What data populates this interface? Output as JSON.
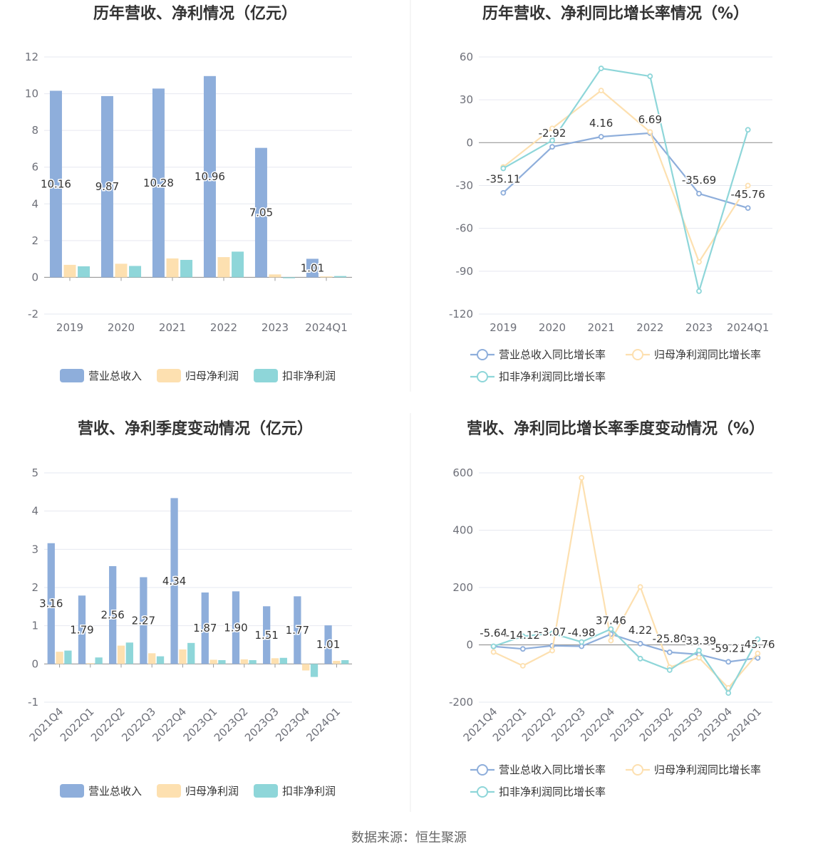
{
  "colors": {
    "revenue": "#8eaedb",
    "parent_profit": "#fde0b0",
    "deducted_profit": "#8ed6d9",
    "grid": "#e6e8f0",
    "axis": "#6e7079"
  },
  "source": "数据来源：恒生聚源",
  "chart_data": [
    {
      "type": "bar",
      "title": "历年营收、净利情况（亿元）",
      "categories": [
        "2019",
        "2020",
        "2021",
        "2022",
        "2023",
        "2024Q1"
      ],
      "ylim": [
        -2,
        12
      ],
      "yticks": [
        -2,
        0,
        2,
        4,
        6,
        8,
        10,
        12
      ],
      "series": [
        {
          "name": "营业总收入",
          "values": [
            10.16,
            9.87,
            10.28,
            10.96,
            7.05,
            1.01
          ]
        },
        {
          "name": "归母净利润",
          "values": [
            0.68,
            0.74,
            1.03,
            1.1,
            0.16,
            0.05
          ]
        },
        {
          "name": "扣非净利润",
          "values": [
            0.6,
            0.62,
            0.95,
            1.4,
            -0.05,
            0.07
          ]
        }
      ],
      "data_labels": [
        "10.16",
        "9.87",
        "10.28",
        "10.96",
        "7.05",
        "1.01"
      ],
      "legend": [
        "营业总收入",
        "归母净利润",
        "扣非净利润"
      ]
    },
    {
      "type": "line",
      "title": "历年营收、净利同比增长率情况（%）",
      "categories": [
        "2019",
        "2020",
        "2021",
        "2022",
        "2023",
        "2024Q1"
      ],
      "ylim": [
        -120,
        60
      ],
      "yticks": [
        -120,
        -90,
        -60,
        -30,
        0,
        30,
        60
      ],
      "series": [
        {
          "name": "营业总收入同比增长率",
          "values": [
            -35.11,
            -2.92,
            4.16,
            6.69,
            -35.69,
            -45.76
          ]
        },
        {
          "name": "归母净利润同比增长率",
          "values": [
            -17,
            10,
            36.5,
            7.5,
            -83.5,
            -30
          ]
        },
        {
          "name": "扣非净利润同比增长率",
          "values": [
            -18,
            1.5,
            52,
            46.5,
            -104,
            9
          ]
        }
      ],
      "data_labels": [
        "-35.11",
        "-2.92",
        "4.16",
        "6.69",
        "-35.69",
        "-45.76"
      ],
      "legend": [
        "营业总收入同比增长率",
        "归母净利润同比增长率",
        "扣非净利润同比增长率"
      ]
    },
    {
      "type": "bar",
      "title": "营收、净利季度变动情况（亿元）",
      "categories": [
        "2021Q4",
        "2022Q1",
        "2022Q2",
        "2022Q3",
        "2022Q4",
        "2023Q1",
        "2023Q2",
        "2023Q3",
        "2023Q4",
        "2024Q1"
      ],
      "ylim": [
        -1,
        5
      ],
      "yticks": [
        -1,
        0,
        1,
        2,
        3,
        4,
        5
      ],
      "series": [
        {
          "name": "营业总收入",
          "values": [
            3.16,
            1.79,
            2.56,
            2.27,
            4.34,
            1.87,
            1.9,
            1.51,
            1.77,
            1.01
          ]
        },
        {
          "name": "归母净利润",
          "values": [
            0.32,
            0.02,
            0.48,
            0.28,
            0.38,
            0.11,
            0.12,
            0.15,
            -0.17,
            0.08
          ]
        },
        {
          "name": "扣非净利润",
          "values": [
            0.35,
            0.17,
            0.56,
            0.2,
            0.55,
            0.1,
            0.1,
            0.16,
            -0.34,
            0.1
          ]
        }
      ],
      "data_labels": [
        "3.16",
        "1.79",
        "2.56",
        "2.27",
        "4.34",
        "1.87",
        "1.90",
        "1.51",
        "1.77",
        "1.01"
      ],
      "legend": [
        "营业总收入",
        "归母净利润",
        "扣非净利润"
      ]
    },
    {
      "type": "line",
      "title": "营收、净利同比增长率季度变动情况（%）",
      "categories": [
        "2021Q4",
        "2022Q1",
        "2022Q2",
        "2022Q3",
        "2022Q4",
        "2023Q1",
        "2023Q2",
        "2023Q3",
        "2023Q4",
        "2024Q1"
      ],
      "ylim": [
        -200,
        600
      ],
      "yticks": [
        -200,
        0,
        200,
        400,
        600
      ],
      "series": [
        {
          "name": "营业总收入同比增长率",
          "values": [
            -5.64,
            -14.12,
            -3.07,
            -4.98,
            37.46,
            4.22,
            -25.8,
            -33.39,
            -59.21,
            -45.76
          ]
        },
        {
          "name": "归母净利润同比增长率",
          "values": [
            -25,
            -73,
            -20,
            583,
            15,
            202,
            -78,
            -45,
            -150,
            -30
          ]
        },
        {
          "name": "扣非净利润同比增长率",
          "values": [
            -5,
            30,
            40,
            10,
            55,
            -48,
            -88,
            -20,
            -168,
            20
          ]
        }
      ],
      "data_labels": [
        "-5.64",
        "-14.12",
        "-3.07",
        "-4.98",
        "37.46",
        "4.22",
        "-25.80",
        "-33.39",
        "-59.21",
        "-45.76"
      ],
      "legend": [
        "营业总收入同比增长率",
        "归母净利润同比增长率",
        "扣非净利润同比增长率"
      ]
    }
  ]
}
